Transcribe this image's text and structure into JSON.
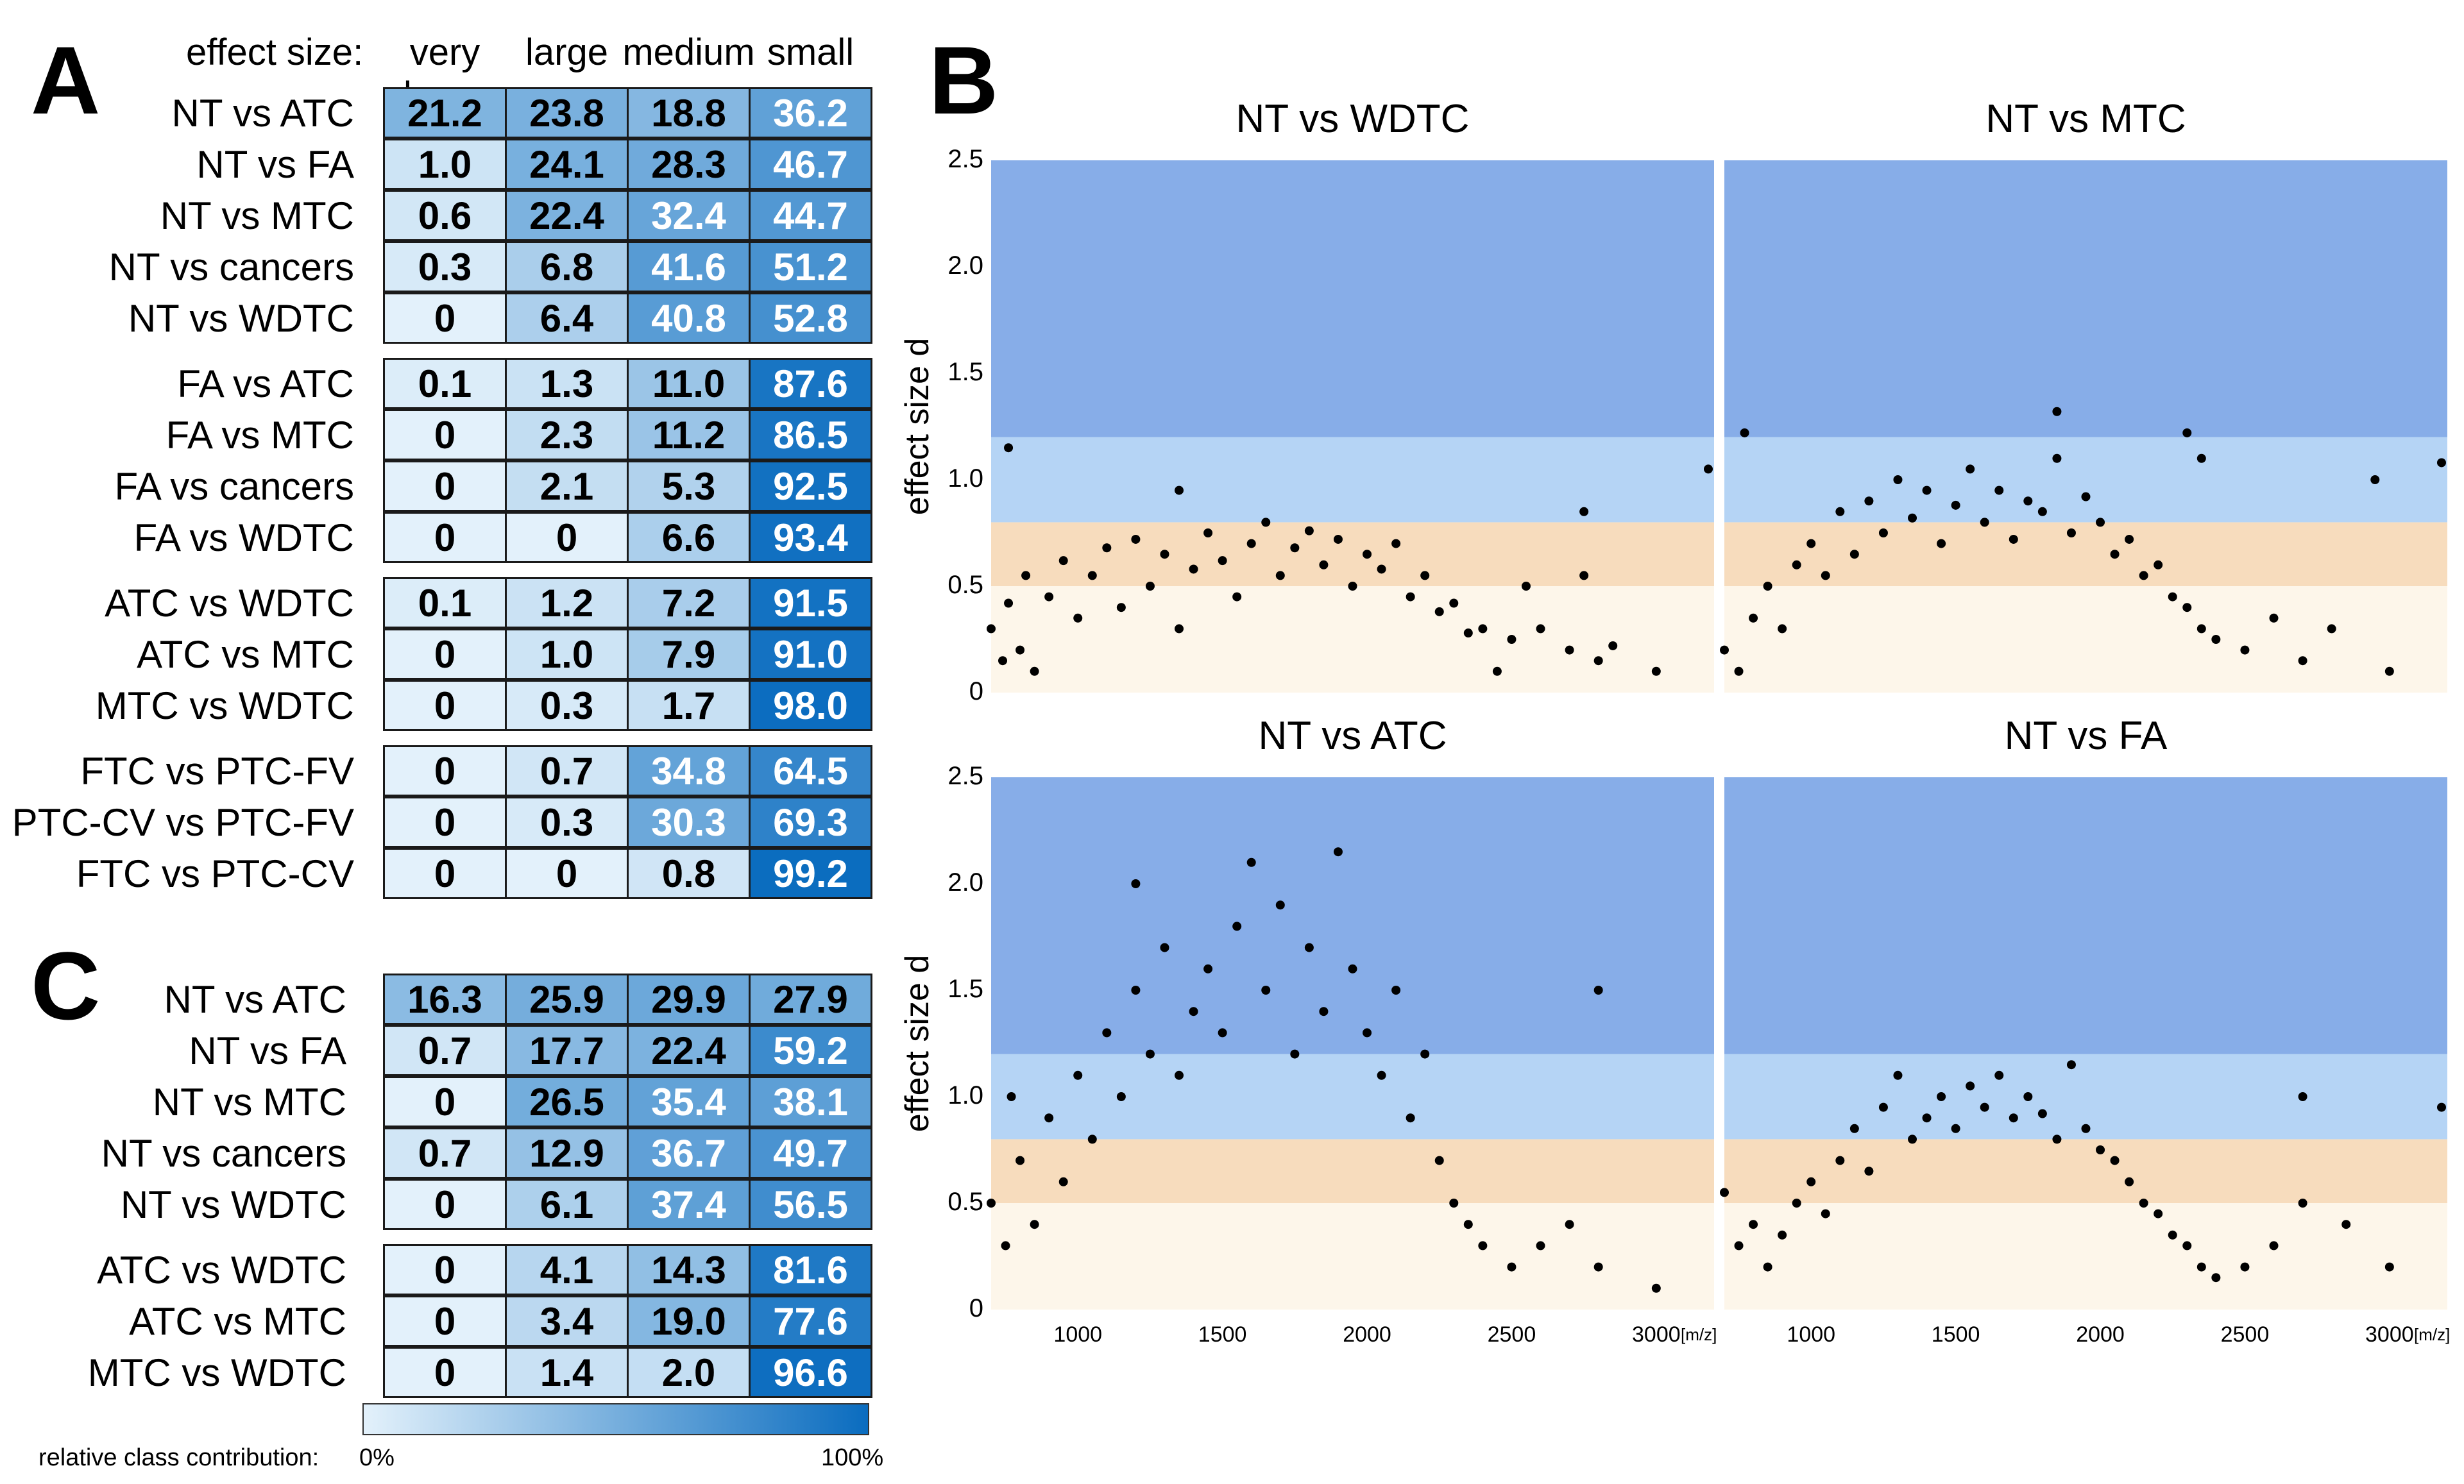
{
  "panel_a": {
    "letter": "A",
    "header_label": "effect size:",
    "columns": [
      "very large",
      "large",
      "medium",
      "small"
    ],
    "groups": [
      [
        {
          "label": "NT vs ATC",
          "values": [
            "21.2",
            "23.8",
            "18.8",
            "36.2"
          ]
        },
        {
          "label": "NT vs FA",
          "values": [
            "1.0",
            "24.1",
            "28.3",
            "46.7"
          ]
        },
        {
          "label": "NT vs MTC",
          "values": [
            "0.6",
            "22.4",
            "32.4",
            "44.7"
          ]
        },
        {
          "label": "NT vs cancers",
          "values": [
            "0.3",
            "6.8",
            "41.6",
            "51.2"
          ]
        },
        {
          "label": "NT vs WDTC",
          "values": [
            "0",
            "6.4",
            "40.8",
            "52.8"
          ]
        }
      ],
      [
        {
          "label": "FA vs ATC",
          "values": [
            "0.1",
            "1.3",
            "11.0",
            "87.6"
          ]
        },
        {
          "label": "FA vs MTC",
          "values": [
            "0",
            "2.3",
            "11.2",
            "86.5"
          ]
        },
        {
          "label": "FA vs cancers",
          "values": [
            "0",
            "2.1",
            "5.3",
            "92.5"
          ]
        },
        {
          "label": "FA vs WDTC",
          "values": [
            "0",
            "0",
            "6.6",
            "93.4"
          ]
        }
      ],
      [
        {
          "label": "ATC vs WDTC",
          "values": [
            "0.1",
            "1.2",
            "7.2",
            "91.5"
          ]
        },
        {
          "label": "ATC vs MTC",
          "values": [
            "0",
            "1.0",
            "7.9",
            "91.0"
          ]
        },
        {
          "label": "MTC vs WDTC",
          "values": [
            "0",
            "0.3",
            "1.7",
            "98.0"
          ]
        }
      ],
      [
        {
          "label": "FTC vs PTC-FV",
          "values": [
            "0",
            "0.7",
            "34.8",
            "64.5"
          ]
        },
        {
          "label": "PTC-CV vs PTC-FV",
          "values": [
            "0",
            "0.3",
            "30.3",
            "69.3"
          ]
        },
        {
          "label": "FTC vs PTC-CV",
          "values": [
            "0",
            "0",
            "0.8",
            "99.2"
          ]
        }
      ]
    ]
  },
  "panel_c": {
    "letter": "C",
    "groups": [
      [
        {
          "label": "NT vs ATC",
          "values": [
            "16.3",
            "25.9",
            "29.9",
            "27.9"
          ]
        },
        {
          "label": "NT vs FA",
          "values": [
            "0.7",
            "17.7",
            "22.4",
            "59.2"
          ]
        },
        {
          "label": "NT vs MTC",
          "values": [
            "0",
            "26.5",
            "35.4",
            "38.1"
          ]
        },
        {
          "label": "NT vs cancers",
          "values": [
            "0.7",
            "12.9",
            "36.7",
            "49.7"
          ]
        },
        {
          "label": "NT vs WDTC",
          "values": [
            "0",
            "6.1",
            "37.4",
            "56.5"
          ]
        }
      ],
      [
        {
          "label": "ATC vs WDTC",
          "values": [
            "0",
            "4.1",
            "14.3",
            "81.6"
          ]
        },
        {
          "label": "ATC vs MTC",
          "values": [
            "0",
            "3.4",
            "19.0",
            "77.6"
          ]
        },
        {
          "label": "MTC vs WDTC",
          "values": [
            "0",
            "1.4",
            "2.0",
            "96.6"
          ]
        }
      ]
    ]
  },
  "legend": {
    "caption": "relative class contribution:",
    "min_label": "0%",
    "max_label": "100%",
    "color_low": "#e3f1fb",
    "color_high": "#0a6cbf"
  },
  "panel_b": {
    "letter": "B",
    "ylabel": "effect size d",
    "x_unit": "[m/z]",
    "xlim": [
      700,
      3200
    ],
    "ylim": [
      0,
      2.5
    ],
    "yticks": [
      "0",
      "0.5",
      "1.0",
      "1.5",
      "2.0",
      "2.5"
    ],
    "xticks": [
      "1000",
      "1500",
      "2000",
      "2500",
      "3000"
    ],
    "bands": [
      {
        "from": 0,
        "to": 0.5,
        "color": "#fdf6ea"
      },
      {
        "from": 0.5,
        "to": 0.8,
        "color": "#f7dcbd"
      },
      {
        "from": 0.8,
        "to": 1.2,
        "color": "#b5d4f5"
      },
      {
        "from": 1.2,
        "to": 2.5,
        "color": "#87ade8"
      }
    ]
  },
  "chart_data": [
    {
      "type": "scatter",
      "title": "NT vs WDTC",
      "xlim": [
        700,
        3200
      ],
      "ylim": [
        0,
        2.5
      ],
      "ylabel": "effect size d",
      "points": [
        [
          700,
          0.3
        ],
        [
          740,
          0.15
        ],
        [
          760,
          0.42
        ],
        [
          800,
          0.2
        ],
        [
          820,
          0.55
        ],
        [
          850,
          0.1
        ],
        [
          900,
          0.45
        ],
        [
          950,
          0.62
        ],
        [
          1000,
          0.35
        ],
        [
          1050,
          0.55
        ],
        [
          1100,
          0.68
        ],
        [
          1150,
          0.4
        ],
        [
          1200,
          0.72
        ],
        [
          1250,
          0.5
        ],
        [
          1300,
          0.65
        ],
        [
          1350,
          0.3
        ],
        [
          1400,
          0.58
        ],
        [
          1450,
          0.75
        ],
        [
          1500,
          0.62
        ],
        [
          1550,
          0.45
        ],
        [
          1600,
          0.7
        ],
        [
          1650,
          0.8
        ],
        [
          1700,
          0.55
        ],
        [
          1750,
          0.68
        ],
        [
          1800,
          0.76
        ],
        [
          1850,
          0.6
        ],
        [
          1900,
          0.72
        ],
        [
          1950,
          0.5
        ],
        [
          2000,
          0.65
        ],
        [
          2050,
          0.58
        ],
        [
          2100,
          0.7
        ],
        [
          2150,
          0.45
        ],
        [
          2200,
          0.55
        ],
        [
          2250,
          0.38
        ],
        [
          2300,
          0.42
        ],
        [
          2350,
          0.28
        ],
        [
          2400,
          0.3
        ],
        [
          2450,
          0.1
        ],
        [
          2500,
          0.25
        ],
        [
          2550,
          0.5
        ],
        [
          2600,
          0.3
        ],
        [
          2700,
          0.2
        ],
        [
          2750,
          0.55
        ],
        [
          2800,
          0.15
        ],
        [
          2850,
          0.22
        ],
        [
          3000,
          0.1
        ],
        [
          760,
          1.15
        ],
        [
          1350,
          0.95
        ],
        [
          2750,
          0.85
        ],
        [
          3180,
          1.05
        ]
      ]
    },
    {
      "type": "scatter",
      "title": "NT vs MTC",
      "xlim": [
        700,
        3200
      ],
      "ylim": [
        0,
        2.5
      ],
      "ylabel": "effect size d",
      "points": [
        [
          700,
          0.2
        ],
        [
          750,
          0.1
        ],
        [
          800,
          0.35
        ],
        [
          850,
          0.5
        ],
        [
          900,
          0.3
        ],
        [
          950,
          0.6
        ],
        [
          1000,
          0.7
        ],
        [
          1050,
          0.55
        ],
        [
          1100,
          0.85
        ],
        [
          1150,
          0.65
        ],
        [
          1200,
          0.9
        ],
        [
          1250,
          0.75
        ],
        [
          1300,
          1.0
        ],
        [
          1350,
          0.82
        ],
        [
          1400,
          0.95
        ],
        [
          1450,
          0.7
        ],
        [
          1500,
          0.88
        ],
        [
          1550,
          1.05
        ],
        [
          1600,
          0.8
        ],
        [
          1650,
          0.95
        ],
        [
          1700,
          0.72
        ],
        [
          1750,
          0.9
        ],
        [
          1800,
          0.85
        ],
        [
          1850,
          1.1
        ],
        [
          1900,
          0.75
        ],
        [
          1950,
          0.92
        ],
        [
          2000,
          0.8
        ],
        [
          2050,
          0.65
        ],
        [
          2100,
          0.72
        ],
        [
          2150,
          0.55
        ],
        [
          2200,
          0.6
        ],
        [
          2250,
          0.45
        ],
        [
          2300,
          0.4
        ],
        [
          2350,
          0.3
        ],
        [
          2400,
          0.25
        ],
        [
          2500,
          0.2
        ],
        [
          2600,
          0.35
        ],
        [
          2700,
          0.15
        ],
        [
          2800,
          0.3
        ],
        [
          3000,
          0.1
        ],
        [
          770,
          1.22
        ],
        [
          1850,
          1.32
        ],
        [
          2300,
          1.22
        ],
        [
          2350,
          1.1
        ],
        [
          2950,
          1.0
        ],
        [
          3180,
          1.08
        ]
      ]
    },
    {
      "type": "scatter",
      "title": "NT vs ATC",
      "xlim": [
        700,
        3200
      ],
      "ylim": [
        0,
        2.5
      ],
      "ylabel": "effect size d",
      "points": [
        [
          700,
          0.5
        ],
        [
          750,
          0.3
        ],
        [
          800,
          0.7
        ],
        [
          850,
          0.4
        ],
        [
          900,
          0.9
        ],
        [
          950,
          0.6
        ],
        [
          1000,
          1.1
        ],
        [
          1050,
          0.8
        ],
        [
          1100,
          1.3
        ],
        [
          1150,
          1.0
        ],
        [
          1200,
          1.5
        ],
        [
          1250,
          1.2
        ],
        [
          1300,
          1.7
        ],
        [
          1350,
          1.1
        ],
        [
          1400,
          1.4
        ],
        [
          1450,
          1.6
        ],
        [
          1500,
          1.3
        ],
        [
          1550,
          1.8
        ],
        [
          1600,
          2.1
        ],
        [
          1650,
          1.5
        ],
        [
          1700,
          1.9
        ],
        [
          1750,
          1.2
        ],
        [
          1800,
          1.7
        ],
        [
          1850,
          1.4
        ],
        [
          1900,
          2.15
        ],
        [
          1950,
          1.6
        ],
        [
          2000,
          1.3
        ],
        [
          2050,
          1.1
        ],
        [
          2100,
          1.5
        ],
        [
          2150,
          0.9
        ],
        [
          2200,
          1.2
        ],
        [
          2250,
          0.7
        ],
        [
          2300,
          0.5
        ],
        [
          2350,
          0.4
        ],
        [
          2400,
          0.3
        ],
        [
          2500,
          0.2
        ],
        [
          2600,
          0.3
        ],
        [
          2700,
          0.4
        ],
        [
          2800,
          1.5
        ],
        [
          2800,
          0.2
        ],
        [
          3000,
          0.1
        ],
        [
          770,
          1.0
        ],
        [
          1200,
          2.0
        ]
      ]
    },
    {
      "type": "scatter",
      "title": "NT vs FA",
      "xlim": [
        700,
        3200
      ],
      "ylim": [
        0,
        2.5
      ],
      "ylabel": "effect size d",
      "points": [
        [
          700,
          0.55
        ],
        [
          750,
          0.3
        ],
        [
          800,
          0.4
        ],
        [
          850,
          0.2
        ],
        [
          900,
          0.35
        ],
        [
          950,
          0.5
        ],
        [
          1000,
          0.6
        ],
        [
          1050,
          0.45
        ],
        [
          1100,
          0.7
        ],
        [
          1150,
          0.85
        ],
        [
          1200,
          0.65
        ],
        [
          1250,
          0.95
        ],
        [
          1300,
          1.1
        ],
        [
          1350,
          0.8
        ],
        [
          1400,
          0.9
        ],
        [
          1450,
          1.0
        ],
        [
          1500,
          0.85
        ],
        [
          1550,
          1.05
        ],
        [
          1600,
          0.95
        ],
        [
          1650,
          1.1
        ],
        [
          1700,
          0.9
        ],
        [
          1750,
          1.0
        ],
        [
          1800,
          0.92
        ],
        [
          1850,
          0.8
        ],
        [
          1900,
          1.15
        ],
        [
          1950,
          0.85
        ],
        [
          2000,
          0.75
        ],
        [
          2050,
          0.7
        ],
        [
          2100,
          0.6
        ],
        [
          2150,
          0.5
        ],
        [
          2200,
          0.45
        ],
        [
          2250,
          0.35
        ],
        [
          2300,
          0.3
        ],
        [
          2350,
          0.2
        ],
        [
          2400,
          0.15
        ],
        [
          2500,
          0.2
        ],
        [
          2600,
          0.3
        ],
        [
          2700,
          0.5
        ],
        [
          2700,
          1.0
        ],
        [
          2850,
          0.4
        ],
        [
          3000,
          0.2
        ],
        [
          3180,
          0.95
        ]
      ]
    }
  ]
}
